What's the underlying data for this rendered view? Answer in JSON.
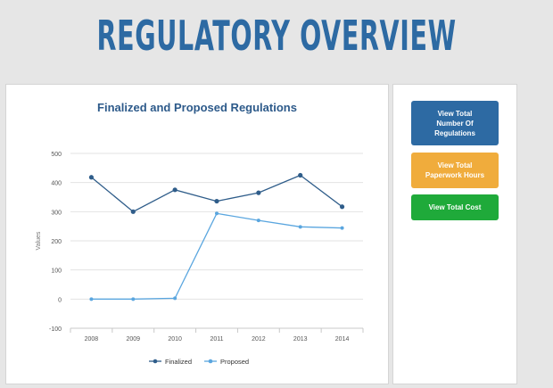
{
  "header": {
    "title": "REGULATORY OVERVIEW"
  },
  "buttons": {
    "total_regulations": "View Total\nNumber Of\nRegulations",
    "paperwork_hours": "View Total\nPaperwork Hours",
    "total_cost": "View Total Cost"
  },
  "colors": {
    "brand_blue": "#2d6aa3",
    "finalized": "#2f5d8a",
    "proposed": "#5aa6df",
    "button_yellow": "#f0ac3c",
    "button_green": "#1faa3a"
  },
  "chart_data": {
    "type": "line",
    "title": "Finalized and Proposed Regulations",
    "xlabel": "",
    "ylabel": "Values",
    "categories": [
      "2008",
      "2009",
      "2010",
      "2011",
      "2012",
      "2013",
      "2014"
    ],
    "ylim": [
      -100,
      500
    ],
    "yticks": [
      -100,
      0,
      100,
      200,
      300,
      400,
      500
    ],
    "grid": true,
    "legend_position": "bottom-center",
    "series": [
      {
        "name": "Finalized",
        "values": [
          418,
          300,
          375,
          336,
          365,
          425,
          317
        ]
      },
      {
        "name": "Proposed",
        "values": [
          0,
          0,
          3,
          294,
          270,
          248,
          244
        ]
      }
    ]
  }
}
